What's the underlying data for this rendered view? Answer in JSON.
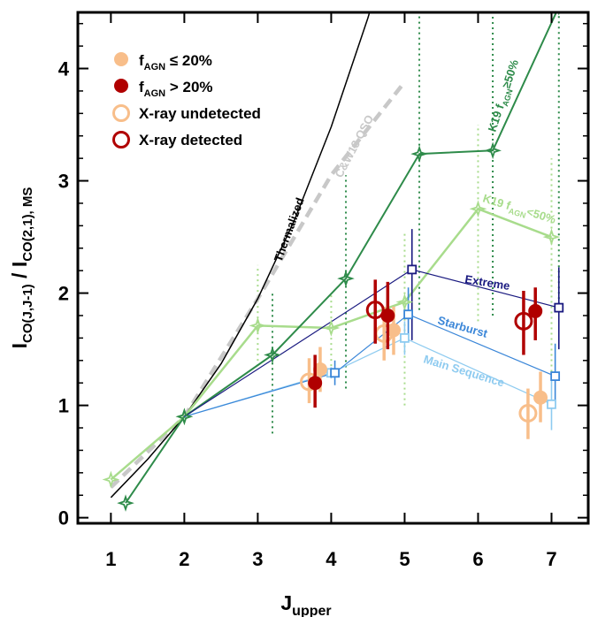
{
  "chart_data": {
    "type": "line",
    "xlabel_main": "J",
    "xlabel_sub": "upper",
    "ylabel_main": "I",
    "ylabel_sub1": "CO(J,J-1)",
    "ylabel_sep": " / I",
    "ylabel_sub2": "CO(2,1), MS",
    "xlim": [
      0.55,
      7.5
    ],
    "ylim": [
      -0.05,
      4.5
    ],
    "x_ticks": [
      1,
      2,
      3,
      4,
      5,
      6,
      7
    ],
    "y_ticks": [
      0,
      1,
      2,
      3,
      4
    ],
    "colors": {
      "thermalized": "#000000",
      "cw13": "#c8c8c8",
      "k19_high": "#2e8b4a",
      "k19_low": "#a8dc8c",
      "extreme": "#1a1a80",
      "starburst": "#3a86d8",
      "main_sequence": "#8ecbf0",
      "low_agn": "#f8be8a",
      "high_agn": "#b00000"
    },
    "legend": {
      "items": [
        {
          "main": "f",
          "sub": "AGN",
          "rest": " ≤ 20%",
          "marker": "filled",
          "color": "#f8be8a"
        },
        {
          "main": "f",
          "sub": "AGN",
          "rest": " > 20%",
          "marker": "filled",
          "color": "#b00000"
        },
        {
          "main": "X-ray undetected",
          "sub": "",
          "rest": "",
          "marker": "open",
          "color": "#f8be8a"
        },
        {
          "main": "X-ray detected",
          "sub": "",
          "rest": "",
          "marker": "open",
          "color": "#b00000"
        }
      ]
    },
    "curve_labels": {
      "thermalized": "Thermalized",
      "cw13": "C&W13 QSO",
      "k19_high": {
        "pre": "K19 f",
        "sub": "AGN",
        "post": "≥50%"
      },
      "k19_low": {
        "pre": "K19 f",
        "sub": "AGN",
        "post": "<50%"
      },
      "extreme": "Extreme",
      "starburst": "Starburst",
      "main_sequence": "Main Sequence"
    },
    "thermalized": {
      "x": [
        1,
        1.5,
        2,
        2.5,
        3,
        3.5,
        4,
        4.5,
        5
      ],
      "y": [
        0.18,
        0.52,
        0.9,
        1.37,
        1.95,
        2.65,
        3.48,
        4.45,
        5.55
      ]
    },
    "cw13": {
      "x": [
        1,
        2,
        3,
        4,
        5
      ],
      "y": [
        0.27,
        0.9,
        1.95,
        3.05,
        3.88
      ]
    },
    "k19_high": {
      "x": [
        1.2,
        2,
        3.2,
        4.2,
        5.2,
        6.2,
        7.1
      ],
      "y": [
        0.13,
        0.9,
        1.45,
        2.13,
        3.24,
        3.27,
        4.55
      ],
      "err": [
        null,
        null,
        [
          0.75,
          2.0
        ],
        [
          1.15,
          3.05
        ],
        [
          1.85,
          4.5
        ],
        [
          1.8,
          4.6
        ],
        [
          1.9,
          4.5
        ]
      ]
    },
    "k19_low": {
      "x": [
        1,
        2,
        3,
        4,
        5,
        6,
        7
      ],
      "y": [
        0.34,
        0.9,
        1.71,
        1.69,
        1.92,
        2.75,
        2.5
      ],
      "err": [
        null,
        null,
        [
          1.35,
          2.25
        ],
        [
          1.35,
          2.0
        ],
        [
          1.0,
          2.55
        ],
        [
          1.75,
          3.5
        ],
        [
          1.3,
          3.2
        ]
      ]
    },
    "extreme": {
      "x": [
        2,
        5.1,
        7.1
      ],
      "y": [
        0.9,
        2.21,
        1.87
      ],
      "err": [
        null,
        [
          1.58,
          2.57
        ],
        [
          1.5,
          2.23
        ]
      ]
    },
    "starburst": {
      "x": [
        2,
        4.05,
        5.05,
        7.05
      ],
      "y": [
        0.9,
        1.29,
        1.81,
        1.26
      ],
      "err": [
        null,
        [
          1.18,
          1.4
        ],
        [
          1.58,
          2.05
        ],
        [
          1.0,
          1.55
        ]
      ]
    },
    "main_sequence": {
      "x": [
        2,
        4.0,
        5.0,
        7.0
      ],
      "y": [
        0.9,
        1.29,
        1.6,
        1.01
      ],
      "err": [
        null,
        [
          1.24,
          1.34
        ],
        [
          1.45,
          1.75
        ],
        [
          0.78,
          1.22
        ]
      ]
    },
    "observations": [
      {
        "x": 3.7,
        "y": 1.21,
        "open": true,
        "color": "#f8be8a",
        "err": [
          1.02,
          1.42
        ]
      },
      {
        "x": 3.85,
        "y": 1.32,
        "open": false,
        "color": "#f8be8a",
        "err": [
          1.12,
          1.52
        ]
      },
      {
        "x": 3.78,
        "y": 1.2,
        "open": false,
        "color": "#b00000",
        "err": [
          0.98,
          1.45
        ]
      },
      {
        "x": 4.72,
        "y": 1.64,
        "open": true,
        "color": "#f8be8a",
        "err": [
          1.4,
          1.88
        ]
      },
      {
        "x": 4.85,
        "y": 1.67,
        "open": false,
        "color": "#f8be8a",
        "err": [
          1.45,
          1.88
        ]
      },
      {
        "x": 4.6,
        "y": 1.85,
        "open": true,
        "color": "#b00000",
        "err": [
          1.55,
          2.12
        ]
      },
      {
        "x": 4.77,
        "y": 1.8,
        "open": false,
        "color": "#b00000",
        "err": [
          1.5,
          2.1
        ]
      },
      {
        "x": 6.68,
        "y": 0.93,
        "open": true,
        "color": "#f8be8a",
        "err": [
          0.7,
          1.15
        ]
      },
      {
        "x": 6.85,
        "y": 1.07,
        "open": false,
        "color": "#f8be8a",
        "err": [
          0.85,
          1.3
        ]
      },
      {
        "x": 6.62,
        "y": 1.75,
        "open": true,
        "color": "#b00000",
        "err": [
          1.45,
          2.02
        ]
      },
      {
        "x": 6.78,
        "y": 1.84,
        "open": false,
        "color": "#b00000",
        "err": [
          1.58,
          2.05
        ]
      }
    ]
  }
}
